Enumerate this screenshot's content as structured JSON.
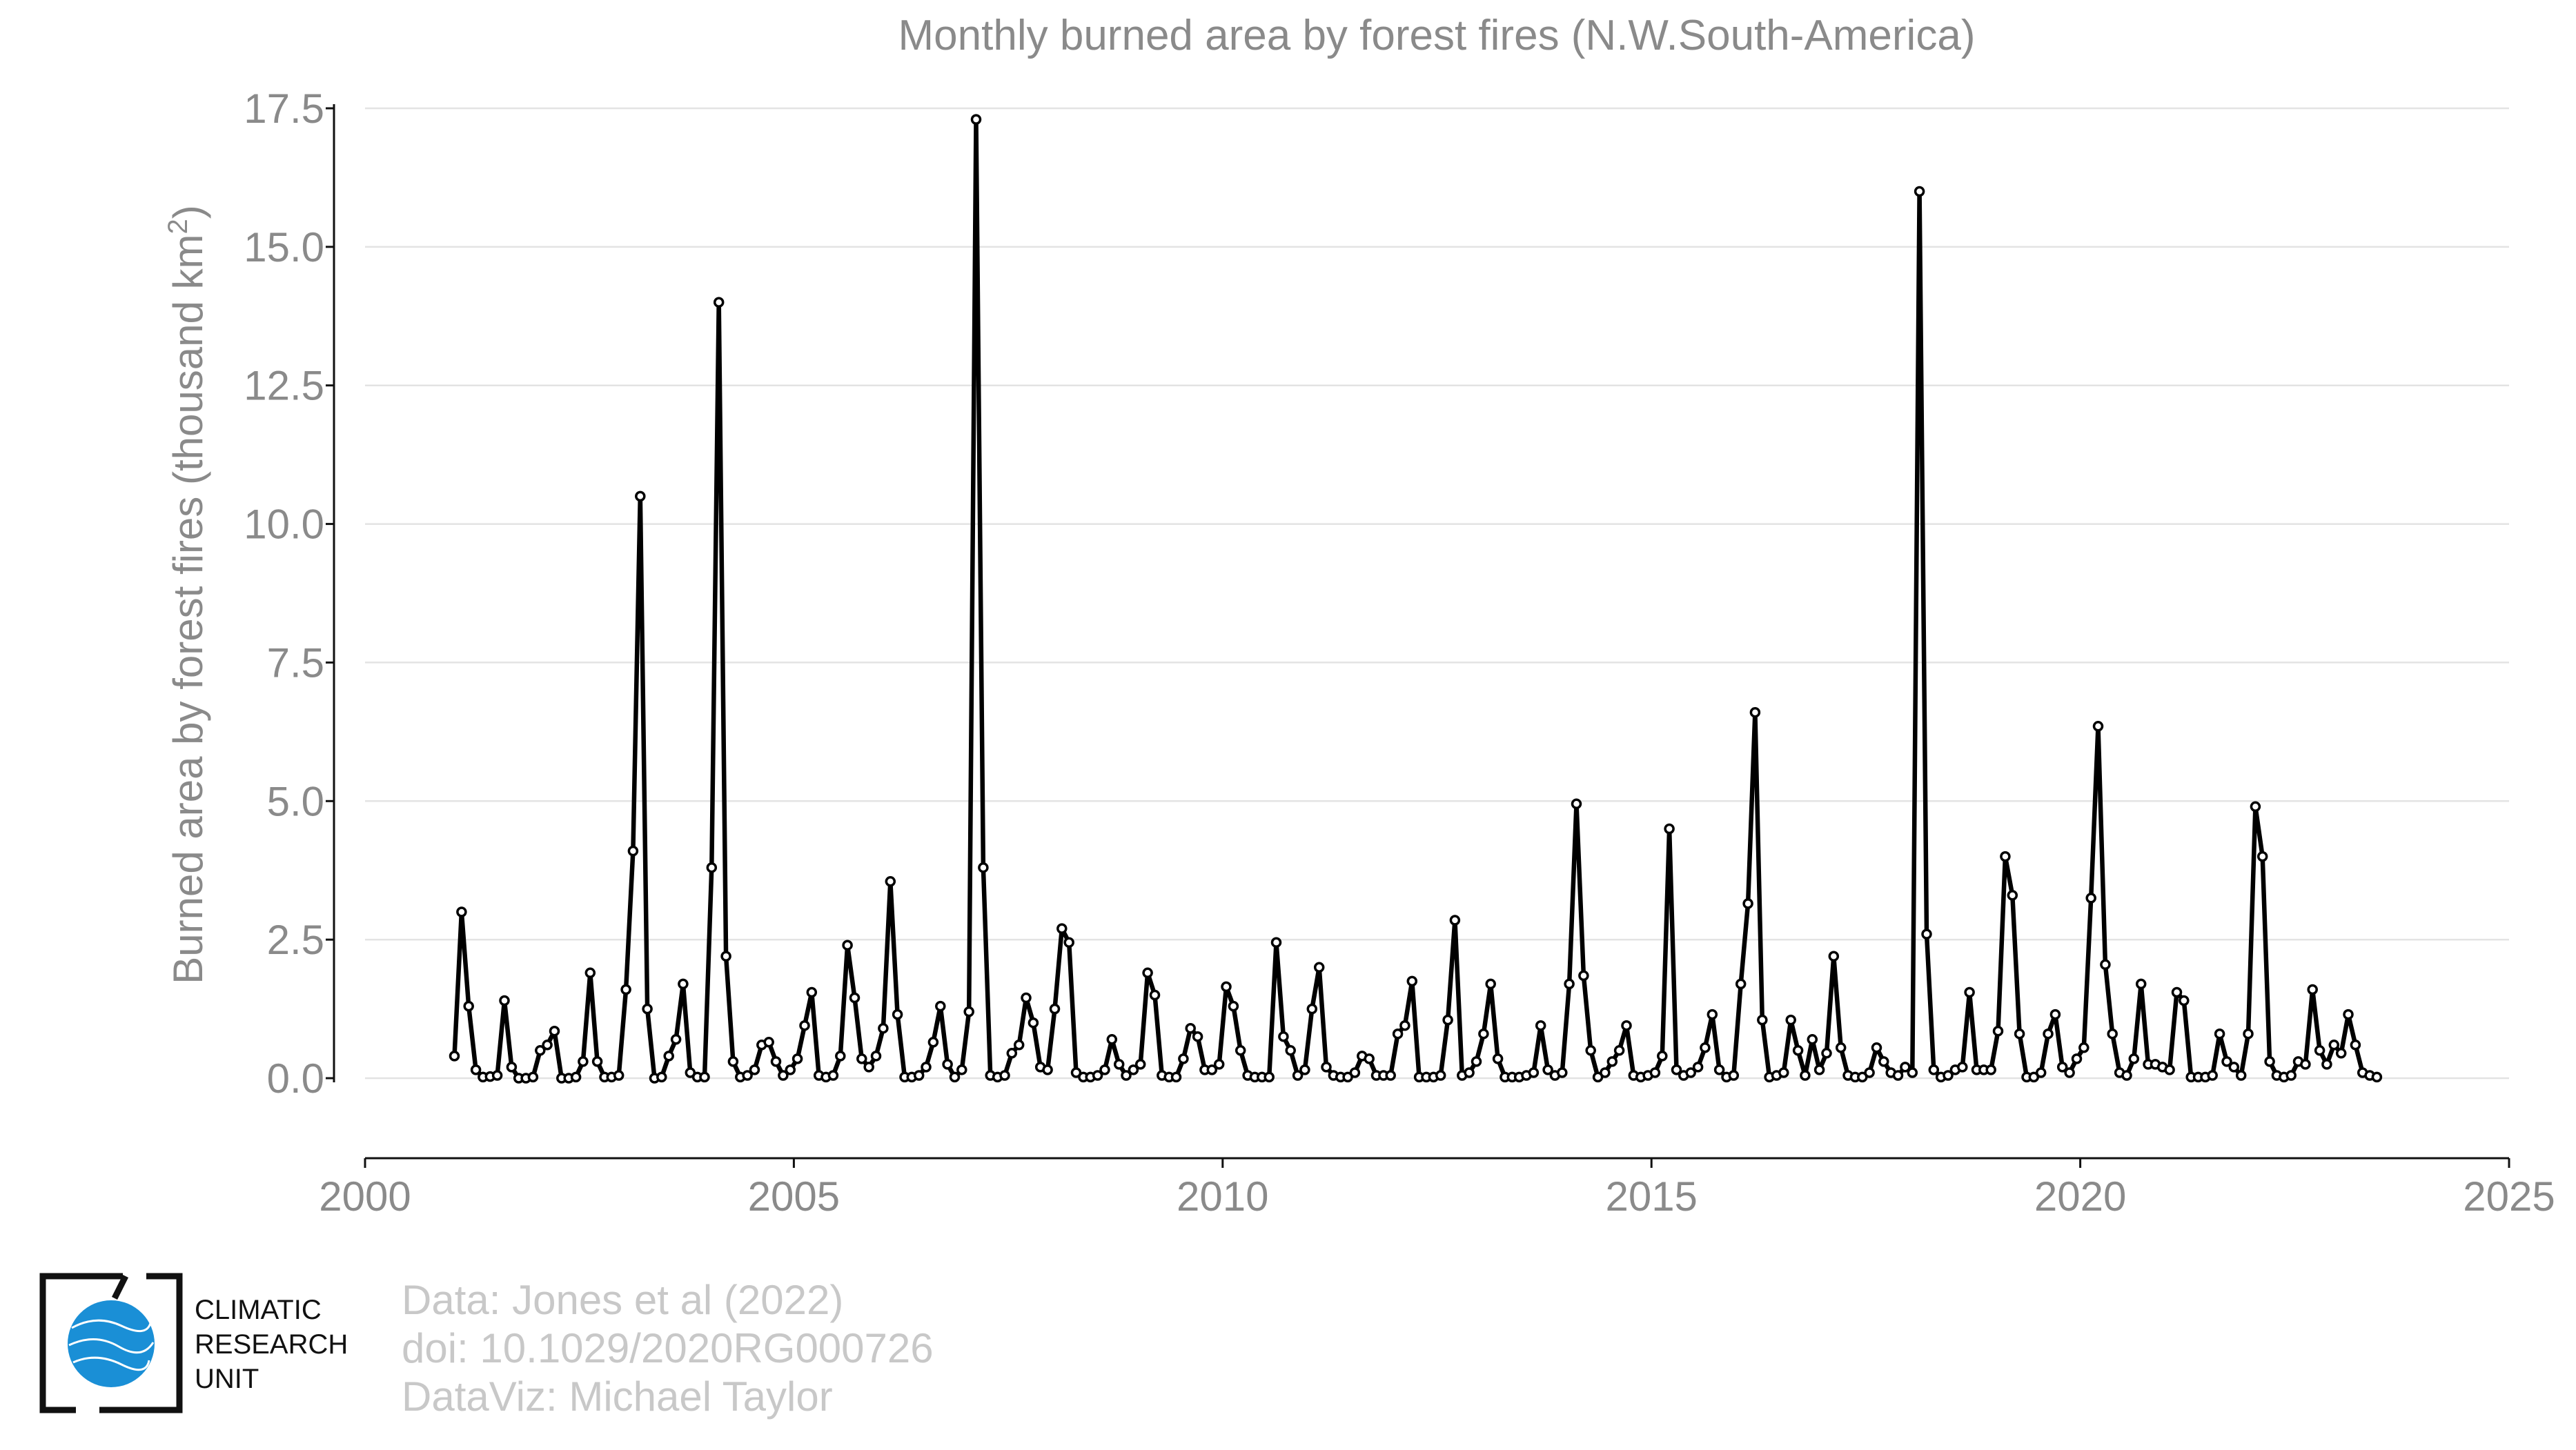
{
  "chart_data": {
    "type": "line",
    "title": "Monthly burned area by forest fires (N.W.South-America)",
    "ylabel": "Burned area by forest fires (thousand km",
    "ylabel_sup": "2",
    "ylabel_close": ")",
    "xlabel": "",
    "xlim": [
      2000,
      2025
    ],
    "ylim": [
      -1.4,
      17.5
    ],
    "x_ticks": [
      2000,
      2005,
      2010,
      2015,
      2020,
      2025
    ],
    "y_ticks": [
      0.0,
      2.5,
      5.0,
      7.5,
      10.0,
      12.5,
      15.0,
      17.5
    ],
    "y_tick_labels": [
      "0.0",
      "2.5",
      "5.0",
      "7.5",
      "10.0",
      "12.5",
      "15.0",
      "17.5"
    ],
    "grid": true,
    "line_color": "#000000",
    "marker_fill": "#ffffff",
    "x_start": 2001.042,
    "x_step_months": 1,
    "series": [
      {
        "values": [
          0.4,
          3.0,
          1.3,
          0.15,
          0.02,
          0.03,
          0.05,
          1.4,
          0.2,
          0.0,
          0.0,
          0.02,
          0.5,
          0.6,
          0.85,
          0.0,
          0.0,
          0.02,
          0.3,
          1.9,
          0.3,
          0.02,
          0.02,
          0.05,
          1.6,
          4.1,
          10.5,
          1.25,
          0.0,
          0.02,
          0.4,
          0.7,
          1.7,
          0.1,
          0.02,
          0.02,
          3.8,
          14.0,
          2.2,
          0.3,
          0.02,
          0.05,
          0.15,
          0.6,
          0.65,
          0.3,
          0.05,
          0.15,
          0.35,
          0.95,
          1.55,
          0.05,
          0.02,
          0.05,
          0.4,
          2.4,
          1.45,
          0.35,
          0.2,
          0.4,
          0.9,
          3.55,
          1.15,
          0.02,
          0.02,
          0.05,
          0.2,
          0.65,
          1.3,
          0.25,
          0.02,
          0.15,
          1.2,
          17.3,
          3.8,
          0.05,
          0.02,
          0.05,
          0.45,
          0.6,
          1.45,
          1.0,
          0.2,
          0.15,
          1.25,
          2.7,
          2.45,
          0.1,
          0.02,
          0.02,
          0.05,
          0.15,
          0.7,
          0.25,
          0.05,
          0.15,
          0.25,
          1.9,
          1.5,
          0.05,
          0.02,
          0.02,
          0.35,
          0.9,
          0.75,
          0.15,
          0.15,
          0.25,
          1.65,
          1.3,
          0.5,
          0.05,
          0.02,
          0.02,
          0.02,
          2.45,
          0.75,
          0.5,
          0.05,
          0.15,
          1.25,
          2.0,
          0.2,
          0.05,
          0.02,
          0.02,
          0.1,
          0.4,
          0.35,
          0.05,
          0.05,
          0.05,
          0.8,
          0.95,
          1.75,
          0.02,
          0.02,
          0.02,
          0.05,
          1.05,
          2.85,
          0.05,
          0.1,
          0.3,
          0.8,
          1.7,
          0.35,
          0.02,
          0.02,
          0.02,
          0.05,
          0.1,
          0.95,
          0.15,
          0.05,
          0.1,
          1.7,
          4.95,
          1.85,
          0.5,
          0.02,
          0.1,
          0.3,
          0.5,
          0.95,
          0.05,
          0.02,
          0.05,
          0.1,
          0.4,
          4.5,
          0.15,
          0.05,
          0.1,
          0.2,
          0.55,
          1.15,
          0.15,
          0.02,
          0.05,
          1.7,
          3.15,
          6.6,
          1.05,
          0.02,
          0.05,
          0.1,
          1.05,
          0.5,
          0.05,
          0.7,
          0.15,
          0.45,
          2.2,
          0.55,
          0.05,
          0.02,
          0.02,
          0.1,
          0.55,
          0.3,
          0.1,
          0.05,
          0.2,
          0.1,
          16.0,
          2.6,
          0.15,
          0.02,
          0.05,
          0.15,
          0.2,
          1.55,
          0.15,
          0.15,
          0.15,
          0.85,
          4.0,
          3.3,
          0.8,
          0.02,
          0.02,
          0.1,
          0.8,
          1.15,
          0.2,
          0.1,
          0.35,
          0.55,
          3.25,
          6.35,
          2.05,
          0.8,
          0.1,
          0.05,
          0.35,
          1.7,
          0.25,
          0.25,
          0.2,
          0.15,
          1.55,
          1.4,
          0.02,
          0.02,
          0.02,
          0.05,
          0.8,
          0.3,
          0.2,
          0.05,
          0.8,
          4.9,
          4.0,
          0.3,
          0.05,
          0.02,
          0.05,
          0.3,
          0.25,
          1.6,
          0.5,
          0.25,
          0.6,
          0.45,
          1.15,
          0.6,
          0.1,
          0.05,
          0.02
        ]
      }
    ]
  },
  "footer": {
    "credits": [
      "Data: Jones et al (2022)",
      "doi: 10.1029/2020RG000726",
      "DataViz: Michael Taylor"
    ],
    "logo_lines": [
      "CLIMATIC",
      "RESEARCH",
      "UNIT"
    ],
    "logo_globe_color": "#1a8fd6"
  }
}
